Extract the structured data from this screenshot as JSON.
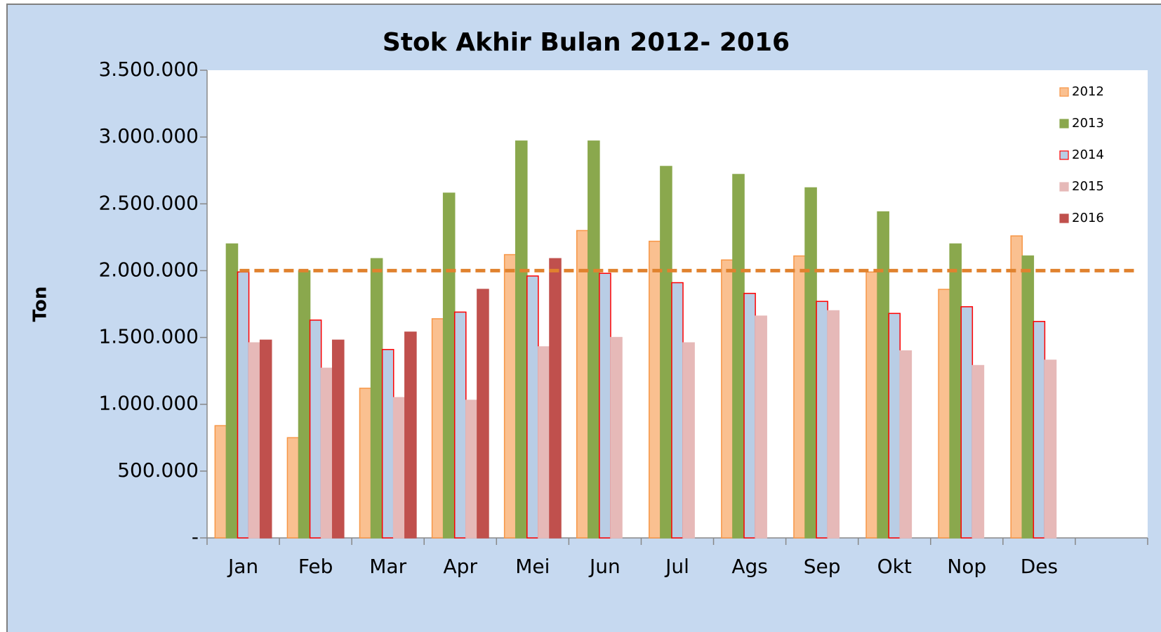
{
  "chart_data": {
    "type": "bar",
    "title": "Stok Akhir Bulan 2012- 2016",
    "y_label": "Ton",
    "categories": [
      "Jan",
      "Feb",
      "Mar",
      "Apr",
      "Mei",
      "Jun",
      "Jul",
      "Ags",
      "Sep",
      "Okt",
      "Nop",
      "Des",
      null
    ],
    "series": [
      {
        "name": "2012",
        "color": "#fac090",
        "edge_color": "#f79646",
        "values": [
          840000,
          750000,
          1120000,
          1640000,
          2120000,
          2300000,
          2220000,
          2080000,
          2110000,
          1990000,
          1860000,
          2260000,
          null
        ]
      },
      {
        "name": "2013",
        "color": "#8aa84d",
        "edge_color": "#8aa84d",
        "values": [
          2200000,
          2000000,
          2090000,
          2580000,
          2970000,
          2970000,
          2780000,
          2720000,
          2620000,
          2440000,
          2200000,
          2110000,
          null
        ]
      },
      {
        "name": "2014",
        "color": "#b9cde5",
        "edge_color": "#ff0000",
        "values": [
          1990000,
          1630000,
          1410000,
          1690000,
          1960000,
          1980000,
          1910000,
          1830000,
          1770000,
          1680000,
          1730000,
          1620000,
          null
        ]
      },
      {
        "name": "2015",
        "color": "#e6b9b8",
        "edge_color": "#e6b9b8",
        "values": [
          1460000,
          1270000,
          1050000,
          1030000,
          1430000,
          1500000,
          1460000,
          1660000,
          1700000,
          1400000,
          1290000,
          1330000,
          null
        ]
      },
      {
        "name": "2016",
        "color": "#c0504d",
        "edge_color": "#c0504d",
        "values": [
          1480000,
          1480000,
          1540000,
          1860000,
          2090000,
          null,
          null,
          null,
          null,
          null,
          null,
          null,
          null
        ]
      }
    ],
    "reference_line": {
      "value": 2000000,
      "color": "#e0822e"
    },
    "ylim": [
      0,
      3500000
    ],
    "yticks": [
      {
        "value": 0,
        "label": "-"
      },
      {
        "value": 500000,
        "label": "500.000"
      },
      {
        "value": 1000000,
        "label": "1.000.000"
      },
      {
        "value": 1500000,
        "label": "1.500.000"
      },
      {
        "value": 2000000,
        "label": "2.000.000"
      },
      {
        "value": 2500000,
        "label": "2.500.000"
      },
      {
        "value": 3000000,
        "label": "3.000.000"
      },
      {
        "value": 3500000,
        "label": "3.500.000"
      }
    ],
    "grid": false,
    "legend": "right"
  }
}
